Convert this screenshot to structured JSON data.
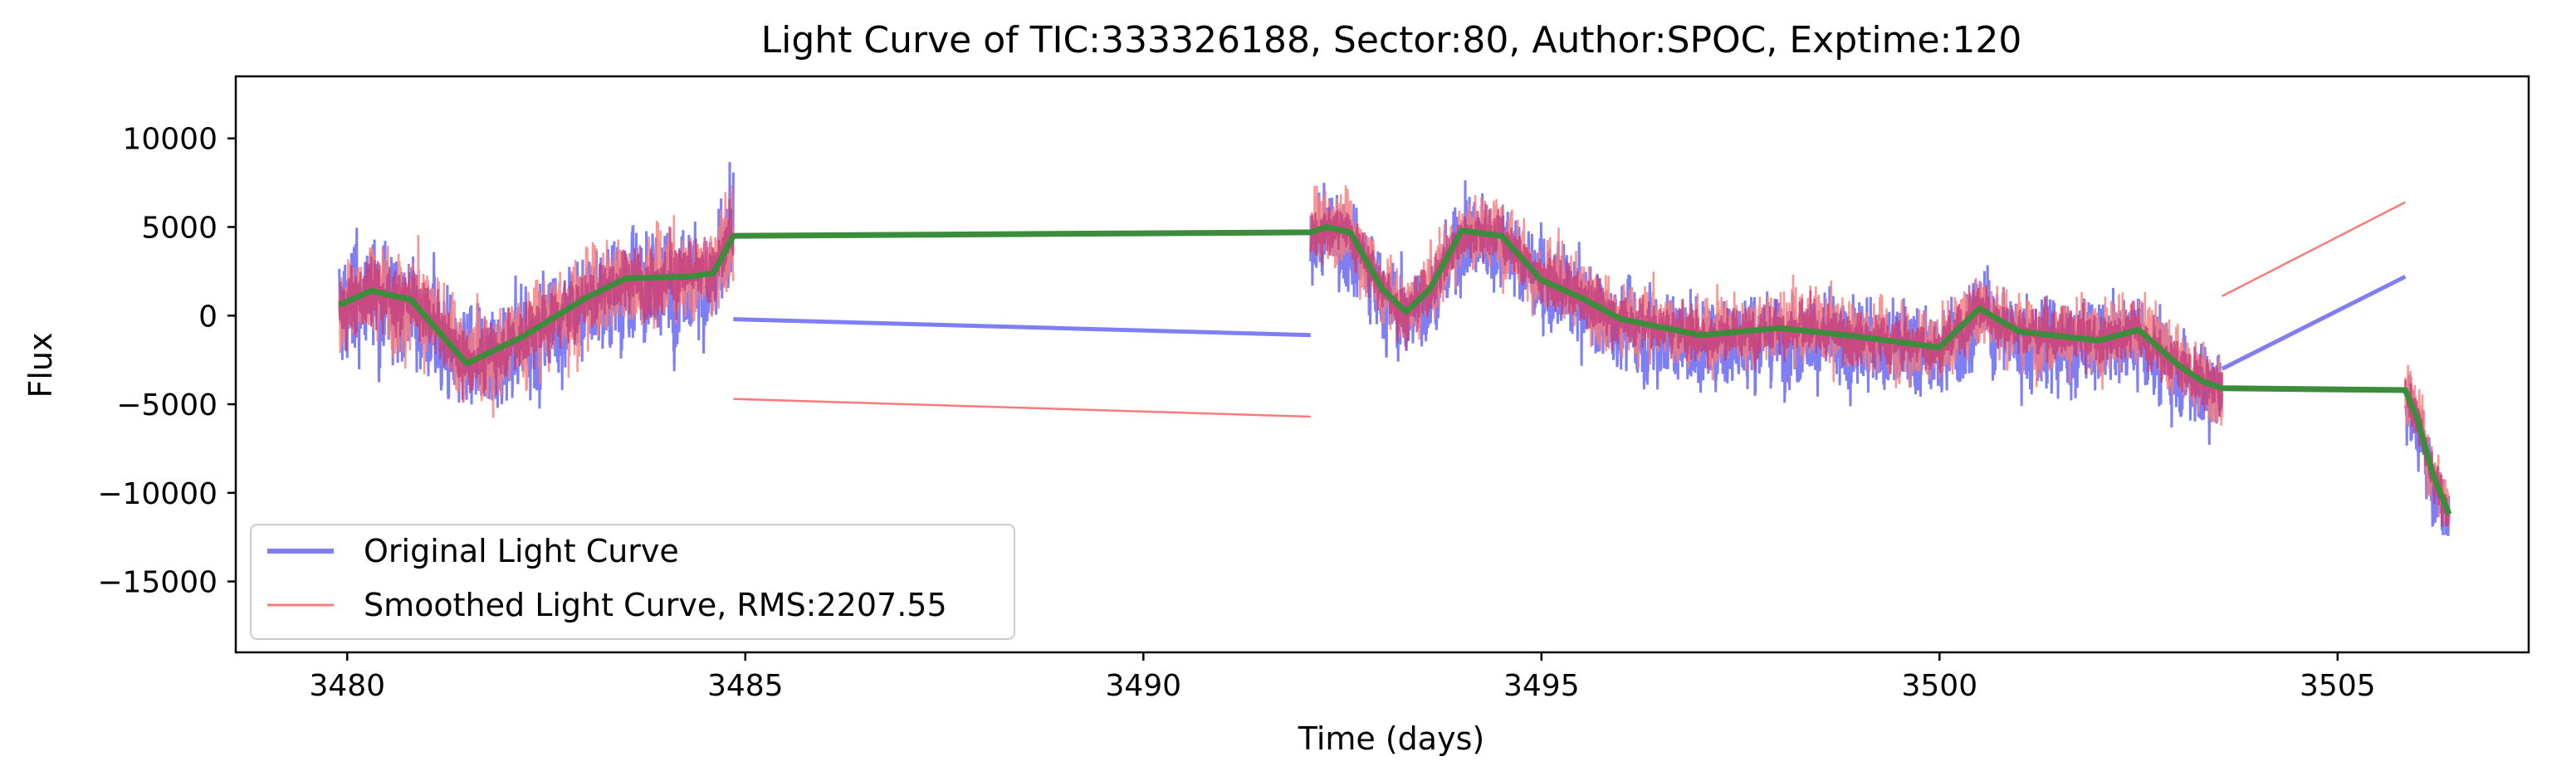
{
  "chart_data": {
    "type": "line",
    "title": "Light Curve of TIC:333326188, Sector:80, Author:SPOC, Exptime:120",
    "xlabel": "Time (days)",
    "ylabel": "Flux",
    "xlim": [
      3478.6,
      3507.4
    ],
    "ylim": [
      -19000,
      13500
    ],
    "xticks": [
      3480,
      3485,
      3490,
      3495,
      3500,
      3505
    ],
    "yticks": [
      -15000,
      -10000,
      -5000,
      0,
      5000,
      10000
    ],
    "grid": false,
    "legend_position": "lower-left",
    "colors": {
      "original": "#7f7ff5",
      "smoothed": "#f87b7b",
      "trend": "#3b8c3b",
      "overlap": "#c13a7a"
    },
    "segments": [
      {
        "start": 3479.9,
        "end": 3484.85,
        "orig_amp": 4200,
        "smooth_amp": 3600,
        "trend": [
          [
            3479.9,
            600
          ],
          [
            3480.3,
            1400
          ],
          [
            3480.8,
            900
          ],
          [
            3481.5,
            -2700
          ],
          [
            3482.2,
            -1200
          ],
          [
            3483.0,
            1000
          ],
          [
            3483.5,
            2100
          ],
          [
            3484.3,
            2200
          ],
          [
            3484.6,
            2400
          ],
          [
            3484.85,
            4500
          ]
        ]
      },
      {
        "start": 3492.1,
        "end": 3503.55,
        "orig_amp": 3400,
        "smooth_amp": 2800,
        "trend": [
          [
            3492.1,
            4700
          ],
          [
            3492.3,
            5000
          ],
          [
            3492.6,
            4700
          ],
          [
            3493.0,
            1500
          ],
          [
            3493.3,
            200
          ],
          [
            3493.6,
            1500
          ],
          [
            3494.0,
            4800
          ],
          [
            3494.5,
            4500
          ],
          [
            3495.0,
            2000
          ],
          [
            3495.5,
            1000
          ],
          [
            3496.0,
            -200
          ],
          [
            3497.0,
            -1100
          ],
          [
            3498.0,
            -700
          ],
          [
            3499.0,
            -1200
          ],
          [
            3500.0,
            -1800
          ],
          [
            3500.5,
            400
          ],
          [
            3501.0,
            -900
          ],
          [
            3502.0,
            -1400
          ],
          [
            3502.5,
            -800
          ],
          [
            3503.0,
            -2800
          ],
          [
            3503.3,
            -3700
          ],
          [
            3503.55,
            -4100
          ]
        ]
      },
      {
        "start": 3505.85,
        "end": 3506.4,
        "orig_amp": 3000,
        "smooth_amp": 2500,
        "trend": [
          [
            3505.85,
            -4200
          ],
          [
            3506.0,
            -5800
          ],
          [
            3506.2,
            -9000
          ],
          [
            3506.4,
            -11200
          ]
        ]
      }
    ],
    "gap_lines": {
      "original": [
        [
          3484.85,
          -200
        ],
        [
          3492.1,
          -1100
        ]
      ],
      "original_2": [
        [
          3503.55,
          -3000
        ],
        [
          3505.85,
          2200
        ]
      ],
      "smoothed": [
        [
          3484.85,
          -4700
        ],
        [
          3492.1,
          -5700
        ]
      ],
      "smoothed_2": [
        [
          3503.55,
          1100
        ],
        [
          3505.85,
          6400
        ]
      ],
      "trend": [
        [
          3484.85,
          4500
        ],
        [
          3492.1,
          4600
        ]
      ],
      "trend_2": [
        [
          3503.55,
          -4100
        ],
        [
          3505.85,
          -4200
        ]
      ]
    },
    "series": [
      {
        "name": "Original Light Curve"
      },
      {
        "name": "Smoothed Light Curve, RMS:2207.55"
      }
    ]
  }
}
